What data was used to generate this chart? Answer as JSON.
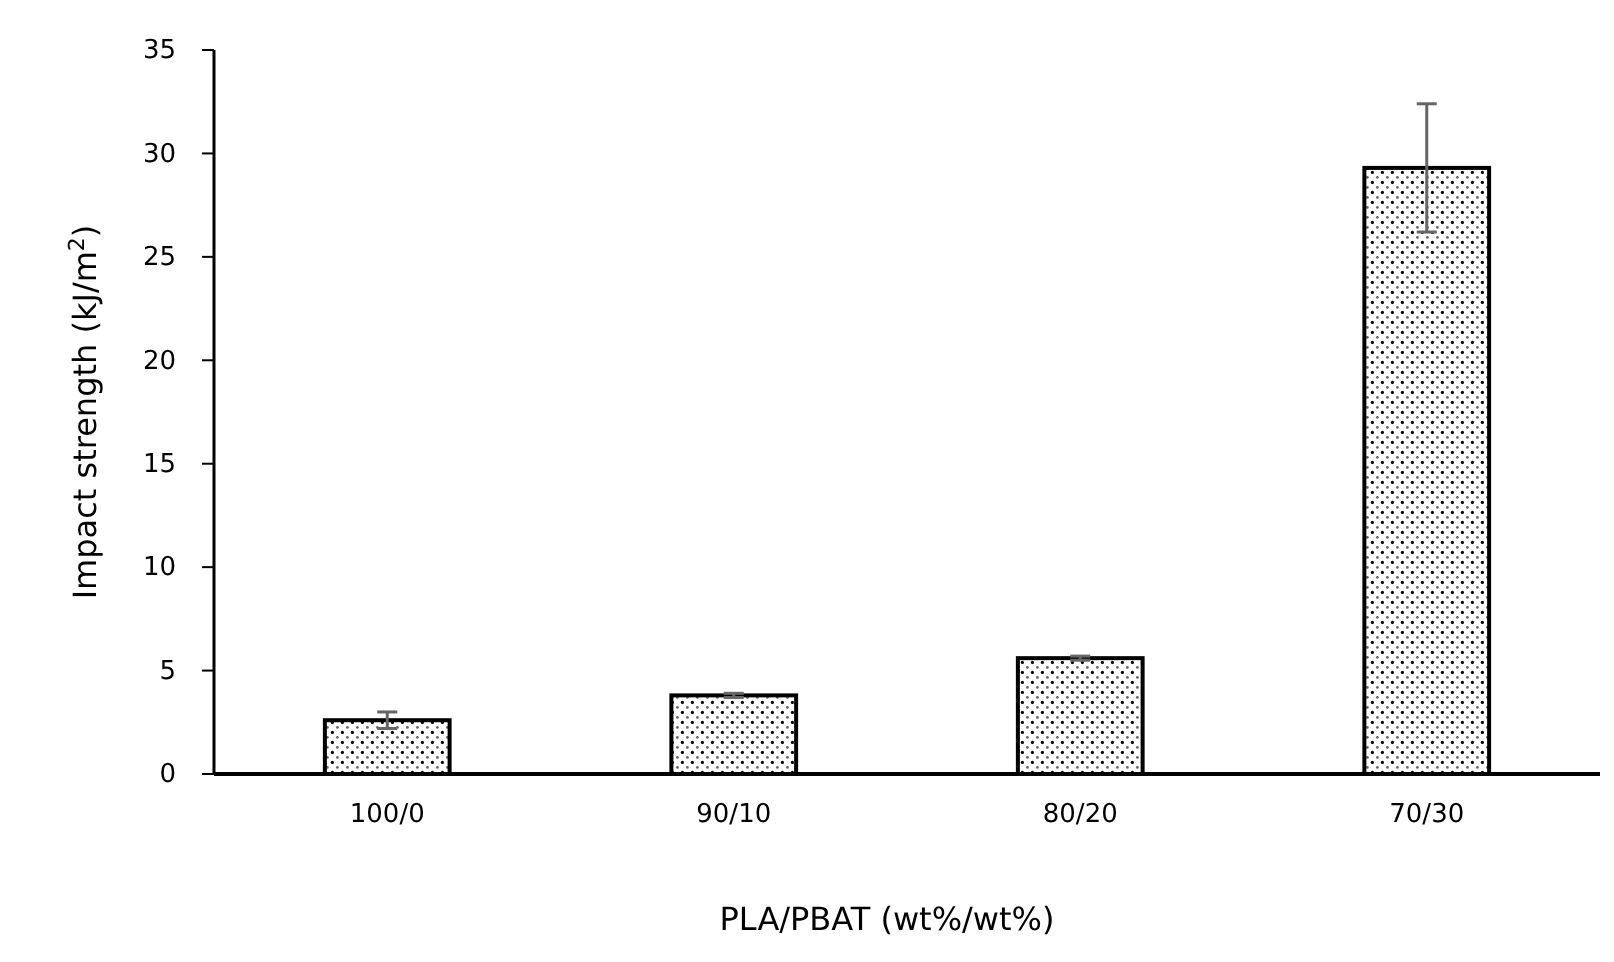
{
  "chart_data": {
    "type": "bar",
    "xlabel": "PLA/PBAT (wt%/wt%)",
    "ylabel": "Impact strength (kJ/m$^{2}$)",
    "categories": [
      "100/0",
      "90/10",
      "80/20",
      "70/30"
    ],
    "values": [
      2.6,
      3.8,
      5.6,
      29.3
    ],
    "errors": [
      0.4,
      0.1,
      0.1,
      3.1
    ],
    "color": "#000000",
    "ylim": [
      0,
      35
    ],
    "yticks": [
      0,
      5,
      10,
      15,
      20,
      25,
      30,
      35
    ],
    "grid": false
  }
}
